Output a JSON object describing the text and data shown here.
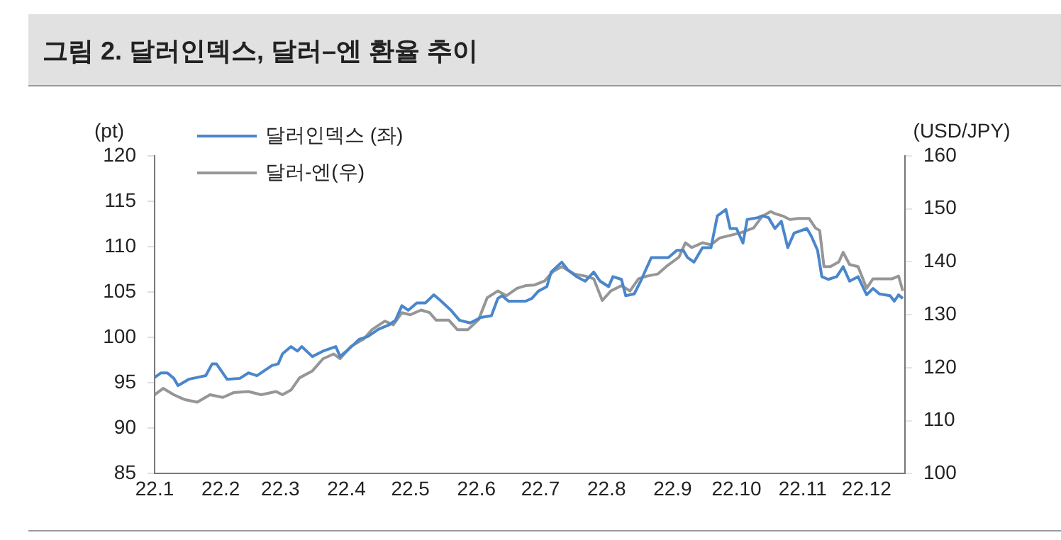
{
  "chart_data": {
    "type": "line",
    "title": "그림 2. 달러인덱스, 달러–엔 환율 추이",
    "ylabel": "(pt)",
    "y2label": "(USD/JPY)",
    "xlim": [
      "--01-01",
      "--12-19"
    ],
    "xticks": [
      {
        "value": "--01-01",
        "label": "22.1"
      },
      {
        "value": "--02-01",
        "label": "22.2"
      },
      {
        "value": "--03-01",
        "label": "22.3"
      },
      {
        "value": "--04-01",
        "label": "22.4"
      },
      {
        "value": "--05-01",
        "label": "22.5"
      },
      {
        "value": "--06-01",
        "label": "22.6"
      },
      {
        "value": "--07-01",
        "label": "22.7"
      },
      {
        "value": "--08-01",
        "label": "22.8"
      },
      {
        "value": "--09-01",
        "label": "22.9"
      },
      {
        "value": "--10-01",
        "label": "22.10"
      },
      {
        "value": "--11-01",
        "label": "22.11"
      },
      {
        "value": "--12-01",
        "label": "22.12"
      }
    ],
    "ylim": [
      85,
      120
    ],
    "yticks": [
      85,
      90,
      95,
      100,
      105,
      110,
      115,
      120
    ],
    "y2lim": [
      100,
      160
    ],
    "y2ticks": [
      100,
      110,
      120,
      130,
      140,
      150,
      160
    ],
    "grid": false,
    "legend": "top left",
    "marker": "none",
    "line_style": "solid",
    "series": [
      {
        "name": "달러인덱스 (좌)",
        "color": "#4a86cc",
        "x": [
          "--01-01",
          "--01-04",
          "--01-07",
          "--01-10",
          "--01-12",
          "--01-17",
          "--01-21",
          "--01-25",
          "--01-28",
          "--01-30",
          "--02-04",
          "--02-10",
          "--02-14",
          "--02-18",
          "--02-25",
          "--02-28",
          "--03-02",
          "--03-06",
          "--03-09",
          "--03-11",
          "--03-16",
          "--03-21",
          "--03-27",
          "--03-29",
          "--04-02",
          "--04-07",
          "--04-11",
          "--04-16",
          "--04-21",
          "--04-24",
          "--04-27",
          "--04-30",
          "--05-04",
          "--05-08",
          "--05-12",
          "--05-15",
          "--05-20",
          "--05-24",
          "--05-29",
          "--06-03",
          "--06-08",
          "--06-11",
          "--06-13",
          "--06-16",
          "--06-20",
          "--06-24",
          "--06-27",
          "--06-30",
          "--07-04",
          "--07-06",
          "--07-11",
          "--07-14",
          "--07-18",
          "--07-22",
          "--07-26",
          "--07-29",
          "--08-02",
          "--08-04",
          "--08-08",
          "--08-10",
          "--08-14",
          "--08-17",
          "--08-22",
          "--08-25",
          "--08-30",
          "--09-03",
          "--09-06",
          "--09-08",
          "--09-11",
          "--09-15",
          "--09-19",
          "--09-22",
          "--09-26",
          "--09-28",
          "--10-01",
          "--10-04",
          "--10-06",
          "--10-11",
          "--10-13",
          "--10-16",
          "--10-19",
          "--10-22",
          "--10-25",
          "--10-28",
          "--11-03",
          "--11-05",
          "--11-08",
          "--11-10",
          "--11-13",
          "--11-17",
          "--11-20",
          "--11-23",
          "--11-27",
          "--12-01",
          "--12-04",
          "--12-07",
          "--12-12",
          "--12-14",
          "--12-16",
          "--12-18"
        ],
        "values": [
          95.6,
          96.1,
          96.1,
          95.5,
          94.7,
          95.4,
          95.6,
          95.8,
          97.1,
          97.1,
          95.4,
          95.5,
          96.1,
          95.8,
          96.9,
          97.1,
          98.2,
          99.0,
          98.5,
          99.0,
          97.9,
          98.5,
          99.0,
          97.9,
          98.7,
          99.8,
          100.1,
          100.9,
          101.4,
          101.9,
          103.5,
          103.0,
          103.8,
          103.8,
          104.7,
          104.1,
          103.0,
          101.9,
          101.6,
          102.2,
          102.4,
          104.3,
          104.6,
          104.0,
          104.0,
          104.0,
          104.3,
          105.1,
          105.6,
          107.2,
          108.3,
          107.4,
          106.7,
          106.2,
          107.2,
          106.2,
          105.6,
          106.7,
          106.4,
          104.6,
          104.8,
          106.2,
          108.8,
          108.8,
          108.8,
          109.6,
          109.6,
          108.8,
          108.3,
          109.9,
          109.9,
          113.4,
          114.1,
          112.0,
          112.0,
          110.4,
          113.0,
          113.2,
          113.4,
          113.2,
          112.0,
          112.8,
          109.9,
          111.5,
          112.0,
          111.2,
          109.6,
          106.7,
          106.4,
          106.7,
          107.8,
          106.2,
          106.7,
          104.7,
          105.4,
          104.8,
          104.6,
          104.0,
          104.7,
          104.3
        ]
      },
      {
        "name": "달러-엔(우)",
        "color": "#969696",
        "axis": "y2",
        "x": [
          "--01-01",
          "--01-05",
          "--01-10",
          "--01-15",
          "--01-21",
          "--01-27",
          "--02-02",
          "--02-07",
          "--02-14",
          "--02-20",
          "--02-27",
          "--03-02",
          "--03-06",
          "--03-10",
          "--03-16",
          "--03-21",
          "--03-26",
          "--03-29",
          "--04-03",
          "--04-09",
          "--04-13",
          "--04-19",
          "--04-23",
          "--04-27",
          "--05-01",
          "--05-06",
          "--05-10",
          "--05-13",
          "--05-19",
          "--05-23",
          "--05-28",
          "--06-02",
          "--06-06",
          "--06-11",
          "--06-15",
          "--06-20",
          "--06-24",
          "--06-28",
          "--07-03",
          "--07-07",
          "--07-11",
          "--07-17",
          "--07-22",
          "--07-26",
          "--07-30",
          "--08-03",
          "--08-08",
          "--08-12",
          "--08-16",
          "--08-20",
          "--08-25",
          "--08-29",
          "--09-04",
          "--09-07",
          "--09-10",
          "--09-15",
          "--09-19",
          "--09-23",
          "--09-28",
          "--10-03",
          "--10-09",
          "--10-13",
          "--10-17",
          "--10-19",
          "--10-23",
          "--10-26",
          "--10-30",
          "--11-04",
          "--11-07",
          "--11-09",
          "--11-11",
          "--11-14",
          "--11-18",
          "--11-20",
          "--11-23",
          "--11-27",
          "--12-01",
          "--12-04",
          "--12-09",
          "--12-13",
          "--12-16",
          "--12-18"
        ],
        "values": [
          114.9,
          116.1,
          114.9,
          114.0,
          113.5,
          114.9,
          114.4,
          115.3,
          115.5,
          114.9,
          115.5,
          114.9,
          115.8,
          118.1,
          119.4,
          121.7,
          122.6,
          121.7,
          124.0,
          125.4,
          127.2,
          128.8,
          128.1,
          130.4,
          130.0,
          130.9,
          130.4,
          129.0,
          129.0,
          127.2,
          127.2,
          129.1,
          133.2,
          134.5,
          133.6,
          135.0,
          135.5,
          135.6,
          136.4,
          138.2,
          139.1,
          137.7,
          137.3,
          136.8,
          132.7,
          134.5,
          135.5,
          134.5,
          136.8,
          137.3,
          137.7,
          139.1,
          140.9,
          143.6,
          142.7,
          143.6,
          143.2,
          144.5,
          145.0,
          145.5,
          146.4,
          148.6,
          149.5,
          149.1,
          148.6,
          148.0,
          148.2,
          148.2,
          146.4,
          145.9,
          139.1,
          139.1,
          140.0,
          141.8,
          139.5,
          139.1,
          135.0,
          136.8,
          136.8,
          136.8,
          137.3,
          134.5
        ]
      }
    ]
  }
}
